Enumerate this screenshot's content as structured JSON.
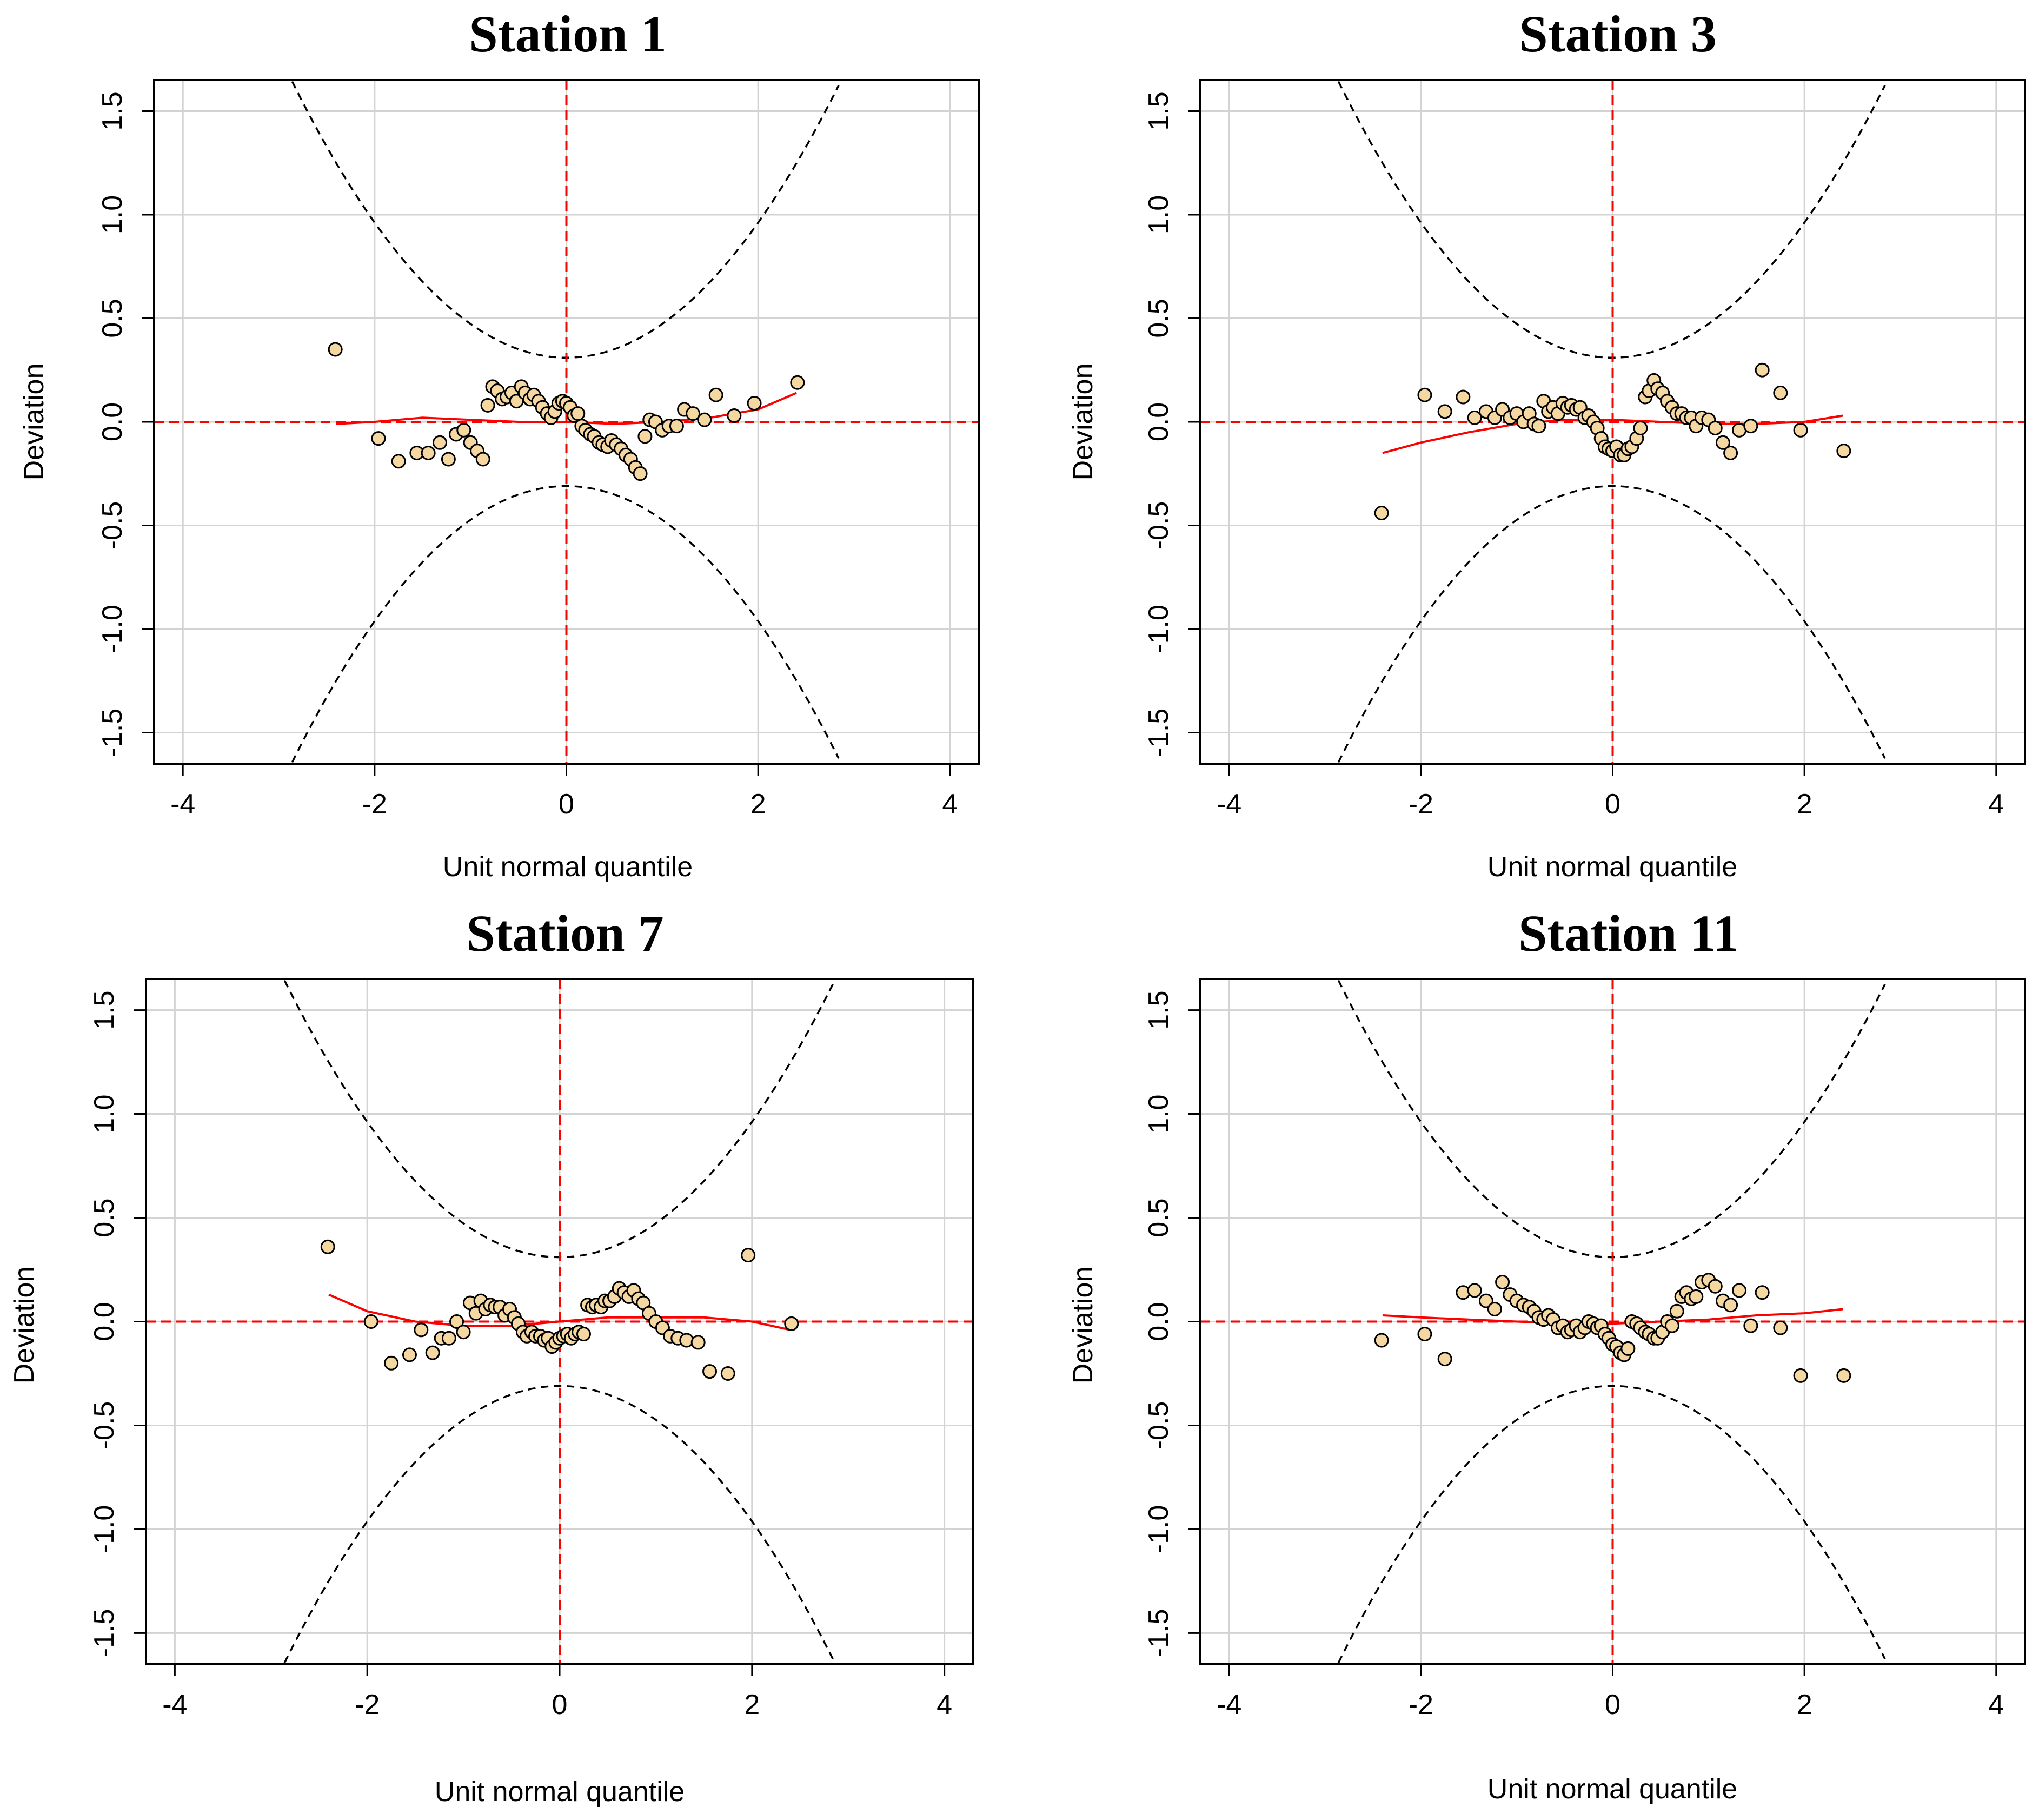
{
  "figure": {
    "background": "#ffffff"
  },
  "style": {
    "point_fill": "#f5d7a1",
    "point_stroke": "#000000",
    "ref_line_color": "#ff0000",
    "smooth_color": "#ff0000",
    "ci_color": "#000000",
    "grid_color": "#d3d3d3"
  },
  "chart_data": [
    {
      "type": "scatter",
      "title": "Station 1",
      "xlabel": "Unit normal quantile",
      "ylabel": "Deviation",
      "xlim": [
        -4.3,
        4.3
      ],
      "ylim": [
        -1.65,
        1.65
      ],
      "xticks": [
        -4,
        -2,
        0,
        2,
        4
      ],
      "yticks": [
        -1.5,
        -1.0,
        -0.5,
        0.0,
        0.5,
        1.0,
        1.5
      ],
      "grid": true,
      "reference_lines": {
        "x": 0,
        "y": 0
      },
      "confidence_bands": "dashed worm-plot bands (upper/lower)",
      "points": [
        [
          -2.41,
          0.35
        ],
        [
          -1.96,
          -0.08
        ],
        [
          -1.75,
          -0.19
        ],
        [
          -1.56,
          -0.15
        ],
        [
          -1.44,
          -0.15
        ],
        [
          -1.32,
          -0.1
        ],
        [
          -1.23,
          -0.18
        ],
        [
          -1.15,
          -0.06
        ],
        [
          -1.07,
          -0.04
        ],
        [
          -1.0,
          -0.1
        ],
        [
          -0.93,
          -0.14
        ],
        [
          -0.87,
          -0.18
        ],
        [
          -0.82,
          0.08
        ],
        [
          -0.77,
          0.17
        ],
        [
          -0.72,
          0.15
        ],
        [
          -0.67,
          0.11
        ],
        [
          -0.62,
          0.12
        ],
        [
          -0.57,
          0.14
        ],
        [
          -0.52,
          0.1
        ],
        [
          -0.47,
          0.17
        ],
        [
          -0.43,
          0.14
        ],
        [
          -0.38,
          0.11
        ],
        [
          -0.34,
          0.13
        ],
        [
          -0.29,
          0.1
        ],
        [
          -0.25,
          0.07
        ],
        [
          -0.2,
          0.04
        ],
        [
          -0.16,
          0.02
        ],
        [
          -0.12,
          0.05
        ],
        [
          -0.08,
          0.09
        ],
        [
          -0.04,
          0.1
        ],
        [
          0.0,
          0.09
        ],
        [
          0.04,
          0.07
        ],
        [
          0.08,
          0.03
        ],
        [
          0.12,
          0.04
        ],
        [
          0.16,
          -0.02
        ],
        [
          0.2,
          -0.04
        ],
        [
          0.25,
          -0.06
        ],
        [
          0.29,
          -0.07
        ],
        [
          0.34,
          -0.1
        ],
        [
          0.38,
          -0.11
        ],
        [
          0.43,
          -0.12
        ],
        [
          0.47,
          -0.09
        ],
        [
          0.52,
          -0.11
        ],
        [
          0.57,
          -0.13
        ],
        [
          0.62,
          -0.16
        ],
        [
          0.67,
          -0.18
        ],
        [
          0.72,
          -0.22
        ],
        [
          0.77,
          -0.25
        ],
        [
          0.82,
          -0.07
        ],
        [
          0.87,
          0.01
        ],
        [
          0.93,
          0.0
        ],
        [
          1.0,
          -0.04
        ],
        [
          1.07,
          -0.02
        ],
        [
          1.15,
          -0.02
        ],
        [
          1.23,
          0.06
        ],
        [
          1.32,
          0.04
        ],
        [
          1.44,
          0.01
        ],
        [
          1.56,
          0.13
        ],
        [
          1.75,
          0.03
        ],
        [
          1.96,
          0.09
        ],
        [
          2.41,
          0.19
        ]
      ],
      "smooth": [
        [
          -2.4,
          -0.01
        ],
        [
          -2.0,
          0.0
        ],
        [
          -1.5,
          0.02
        ],
        [
          -1.0,
          0.01
        ],
        [
          -0.5,
          0.0
        ],
        [
          0.0,
          0.0
        ],
        [
          0.5,
          -0.01
        ],
        [
          1.0,
          0.0
        ],
        [
          1.5,
          0.02
        ],
        [
          2.0,
          0.06
        ],
        [
          2.4,
          0.14
        ]
      ]
    },
    {
      "type": "scatter",
      "title": "Station 3",
      "xlabel": "Unit normal quantile",
      "ylabel": "Deviation",
      "xlim": [
        -4.3,
        4.3
      ],
      "ylim": [
        -1.65,
        1.65
      ],
      "xticks": [
        -4,
        -2,
        0,
        2,
        4
      ],
      "yticks": [
        -1.5,
        -1.0,
        -0.5,
        0.0,
        0.5,
        1.0,
        1.5
      ],
      "grid": true,
      "reference_lines": {
        "x": 0,
        "y": 0
      },
      "confidence_bands": "dashed worm-plot bands (upper/lower)",
      "points": [
        [
          -2.41,
          -0.44
        ],
        [
          -1.96,
          0.13
        ],
        [
          -1.75,
          0.05
        ],
        [
          -1.56,
          0.12
        ],
        [
          -1.44,
          0.02
        ],
        [
          -1.32,
          0.05
        ],
        [
          -1.23,
          0.02
        ],
        [
          -1.15,
          0.06
        ],
        [
          -1.07,
          0.02
        ],
        [
          -1.0,
          0.04
        ],
        [
          -0.93,
          0.0
        ],
        [
          -0.87,
          0.04
        ],
        [
          -0.82,
          -0.01
        ],
        [
          -0.77,
          -0.02
        ],
        [
          -0.72,
          0.1
        ],
        [
          -0.67,
          0.05
        ],
        [
          -0.62,
          0.07
        ],
        [
          -0.57,
          0.04
        ],
        [
          -0.52,
          0.09
        ],
        [
          -0.47,
          0.07
        ],
        [
          -0.43,
          0.08
        ],
        [
          -0.38,
          0.06
        ],
        [
          -0.34,
          0.07
        ],
        [
          -0.29,
          0.02
        ],
        [
          -0.25,
          0.03
        ],
        [
          -0.2,
          0.0
        ],
        [
          -0.16,
          -0.03
        ],
        [
          -0.12,
          -0.08
        ],
        [
          -0.08,
          -0.12
        ],
        [
          -0.04,
          -0.13
        ],
        [
          0.0,
          -0.14
        ],
        [
          0.04,
          -0.12
        ],
        [
          0.08,
          -0.16
        ],
        [
          0.12,
          -0.16
        ],
        [
          0.16,
          -0.13
        ],
        [
          0.2,
          -0.12
        ],
        [
          0.25,
          -0.08
        ],
        [
          0.29,
          -0.03
        ],
        [
          0.34,
          0.12
        ],
        [
          0.38,
          0.15
        ],
        [
          0.43,
          0.2
        ],
        [
          0.47,
          0.16
        ],
        [
          0.52,
          0.14
        ],
        [
          0.57,
          0.1
        ],
        [
          0.62,
          0.07
        ],
        [
          0.67,
          0.04
        ],
        [
          0.72,
          0.04
        ],
        [
          0.77,
          0.02
        ],
        [
          0.82,
          0.02
        ],
        [
          0.87,
          -0.02
        ],
        [
          0.93,
          0.02
        ],
        [
          1.0,
          0.01
        ],
        [
          1.07,
          -0.03
        ],
        [
          1.15,
          -0.1
        ],
        [
          1.23,
          -0.15
        ],
        [
          1.32,
          -0.04
        ],
        [
          1.44,
          -0.02
        ],
        [
          1.56,
          0.25
        ],
        [
          1.75,
          0.14
        ],
        [
          1.96,
          -0.04
        ],
        [
          2.41,
          -0.14
        ]
      ],
      "smooth": [
        [
          -2.4,
          -0.15
        ],
        [
          -2.0,
          -0.1
        ],
        [
          -1.5,
          -0.05
        ],
        [
          -1.0,
          -0.01
        ],
        [
          -0.5,
          0.01
        ],
        [
          0.0,
          0.01
        ],
        [
          0.5,
          0.0
        ],
        [
          1.0,
          -0.01
        ],
        [
          1.5,
          -0.01
        ],
        [
          2.0,
          0.0
        ],
        [
          2.4,
          0.03
        ]
      ]
    },
    {
      "type": "scatter",
      "title": "Station 7",
      "xlabel": "Unit normal quantile",
      "ylabel": "Deviation",
      "xlim": [
        -4.3,
        4.3
      ],
      "ylim": [
        -1.65,
        1.65
      ],
      "xticks": [
        -4,
        -2,
        0,
        2,
        4
      ],
      "yticks": [
        -1.5,
        -1.0,
        -0.5,
        0.0,
        0.5,
        1.0,
        1.5
      ],
      "grid": true,
      "reference_lines": {
        "x": 0,
        "y": 0
      },
      "confidence_bands": "dashed worm-plot bands (upper/lower)",
      "points": [
        [
          -2.41,
          0.36
        ],
        [
          -1.96,
          0.0
        ],
        [
          -1.75,
          -0.2
        ],
        [
          -1.56,
          -0.16
        ],
        [
          -1.44,
          -0.04
        ],
        [
          -1.32,
          -0.15
        ],
        [
          -1.23,
          -0.08
        ],
        [
          -1.15,
          -0.08
        ],
        [
          -1.07,
          0.0
        ],
        [
          -1.0,
          -0.05
        ],
        [
          -0.93,
          0.09
        ],
        [
          -0.87,
          0.04
        ],
        [
          -0.82,
          0.1
        ],
        [
          -0.77,
          0.06
        ],
        [
          -0.72,
          0.08
        ],
        [
          -0.67,
          0.07
        ],
        [
          -0.62,
          0.07
        ],
        [
          -0.57,
          0.03
        ],
        [
          -0.52,
          0.06
        ],
        [
          -0.47,
          0.02
        ],
        [
          -0.43,
          -0.01
        ],
        [
          -0.38,
          -0.05
        ],
        [
          -0.34,
          -0.07
        ],
        [
          -0.29,
          -0.05
        ],
        [
          -0.25,
          -0.07
        ],
        [
          -0.2,
          -0.07
        ],
        [
          -0.16,
          -0.09
        ],
        [
          -0.12,
          -0.08
        ],
        [
          -0.08,
          -0.12
        ],
        [
          -0.04,
          -0.1
        ],
        [
          0.0,
          -0.08
        ],
        [
          0.04,
          -0.07
        ],
        [
          0.08,
          -0.06
        ],
        [
          0.12,
          -0.08
        ],
        [
          0.16,
          -0.06
        ],
        [
          0.2,
          -0.05
        ],
        [
          0.25,
          -0.06
        ],
        [
          0.29,
          0.08
        ],
        [
          0.34,
          0.07
        ],
        [
          0.38,
          0.08
        ],
        [
          0.43,
          0.07
        ],
        [
          0.47,
          0.1
        ],
        [
          0.52,
          0.1
        ],
        [
          0.57,
          0.12
        ],
        [
          0.62,
          0.16
        ],
        [
          0.67,
          0.14
        ],
        [
          0.72,
          0.12
        ],
        [
          0.77,
          0.15
        ],
        [
          0.82,
          0.11
        ],
        [
          0.87,
          0.09
        ],
        [
          0.93,
          0.04
        ],
        [
          1.0,
          0.0
        ],
        [
          1.07,
          -0.03
        ],
        [
          1.15,
          -0.07
        ],
        [
          1.23,
          -0.08
        ],
        [
          1.32,
          -0.09
        ],
        [
          1.44,
          -0.1
        ],
        [
          1.56,
          -0.24
        ],
        [
          1.75,
          -0.25
        ],
        [
          1.96,
          0.32
        ],
        [
          2.41,
          -0.01
        ]
      ],
      "smooth": [
        [
          -2.4,
          0.13
        ],
        [
          -2.0,
          0.05
        ],
        [
          -1.5,
          0.0
        ],
        [
          -1.0,
          -0.02
        ],
        [
          -0.5,
          -0.02
        ],
        [
          0.0,
          0.0
        ],
        [
          0.5,
          0.02
        ],
        [
          1.0,
          0.02
        ],
        [
          1.5,
          0.02
        ],
        [
          2.0,
          0.0
        ],
        [
          2.4,
          -0.04
        ]
      ]
    },
    {
      "type": "scatter",
      "title": "Station 11",
      "xlabel": "Unit normal quantile",
      "ylabel": "Deviation",
      "xlim": [
        -4.3,
        4.3
      ],
      "ylim": [
        -1.65,
        1.65
      ],
      "xticks": [
        -4,
        -2,
        0,
        2,
        4
      ],
      "yticks": [
        -1.5,
        -1.0,
        -0.5,
        0.0,
        0.5,
        1.0,
        1.5
      ],
      "grid": true,
      "reference_lines": {
        "x": 0,
        "y": 0
      },
      "confidence_bands": "dashed worm-plot bands (upper/lower)",
      "points": [
        [
          -2.41,
          -0.09
        ],
        [
          -1.96,
          -0.06
        ],
        [
          -1.75,
          -0.18
        ],
        [
          -1.56,
          0.14
        ],
        [
          -1.44,
          0.15
        ],
        [
          -1.32,
          0.1
        ],
        [
          -1.23,
          0.06
        ],
        [
          -1.15,
          0.19
        ],
        [
          -1.07,
          0.13
        ],
        [
          -1.0,
          0.1
        ],
        [
          -0.93,
          0.08
        ],
        [
          -0.87,
          0.07
        ],
        [
          -0.82,
          0.05
        ],
        [
          -0.77,
          0.02
        ],
        [
          -0.72,
          0.01
        ],
        [
          -0.67,
          0.03
        ],
        [
          -0.62,
          0.01
        ],
        [
          -0.57,
          -0.03
        ],
        [
          -0.52,
          -0.02
        ],
        [
          -0.47,
          -0.05
        ],
        [
          -0.43,
          -0.04
        ],
        [
          -0.38,
          -0.02
        ],
        [
          -0.34,
          -0.05
        ],
        [
          -0.29,
          -0.03
        ],
        [
          -0.25,
          0.0
        ],
        [
          -0.2,
          -0.01
        ],
        [
          -0.16,
          -0.03
        ],
        [
          -0.12,
          -0.02
        ],
        [
          -0.08,
          -0.06
        ],
        [
          -0.04,
          -0.08
        ],
        [
          0.0,
          -0.11
        ],
        [
          0.04,
          -0.12
        ],
        [
          0.08,
          -0.15
        ],
        [
          0.12,
          -0.16
        ],
        [
          0.16,
          -0.13
        ],
        [
          0.2,
          0.0
        ],
        [
          0.25,
          -0.01
        ],
        [
          0.29,
          -0.03
        ],
        [
          0.34,
          -0.05
        ],
        [
          0.38,
          -0.06
        ],
        [
          0.43,
          -0.08
        ],
        [
          0.47,
          -0.08
        ],
        [
          0.52,
          -0.05
        ],
        [
          0.57,
          0.0
        ],
        [
          0.62,
          -0.02
        ],
        [
          0.67,
          0.05
        ],
        [
          0.72,
          0.12
        ],
        [
          0.77,
          0.14
        ],
        [
          0.82,
          0.11
        ],
        [
          0.87,
          0.12
        ],
        [
          0.93,
          0.19
        ],
        [
          1.0,
          0.2
        ],
        [
          1.07,
          0.17
        ],
        [
          1.15,
          0.1
        ],
        [
          1.23,
          0.08
        ],
        [
          1.32,
          0.15
        ],
        [
          1.44,
          -0.02
        ],
        [
          1.56,
          0.14
        ],
        [
          1.75,
          -0.03
        ],
        [
          1.96,
          -0.26
        ],
        [
          2.41,
          -0.26
        ]
      ],
      "smooth": [
        [
          -2.4,
          0.03
        ],
        [
          -2.0,
          0.02
        ],
        [
          -1.5,
          0.01
        ],
        [
          -1.0,
          0.0
        ],
        [
          -0.5,
          -0.01
        ],
        [
          0.0,
          -0.01
        ],
        [
          0.5,
          0.0
        ],
        [
          1.0,
          0.01
        ],
        [
          1.5,
          0.03
        ],
        [
          2.0,
          0.04
        ],
        [
          2.4,
          0.06
        ]
      ]
    }
  ]
}
